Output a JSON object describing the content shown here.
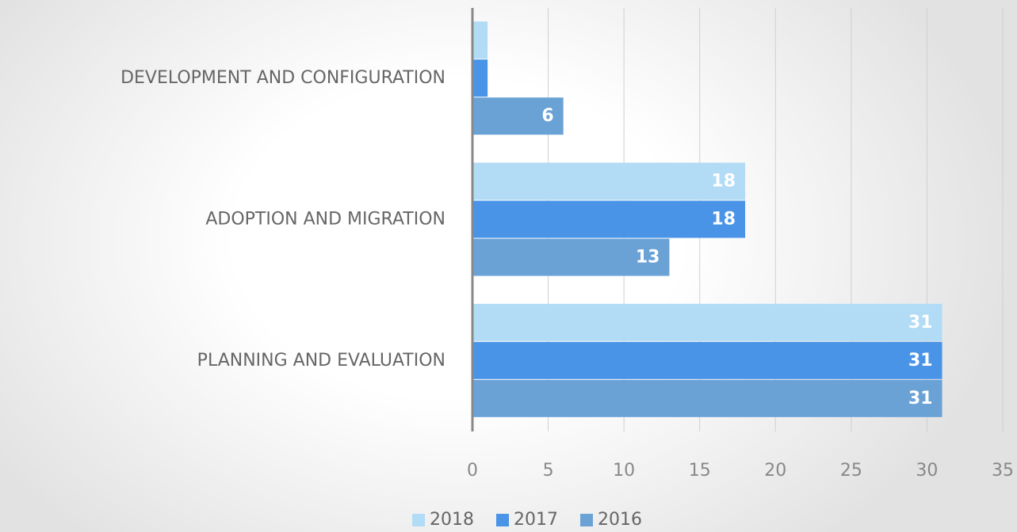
{
  "chart_data": {
    "type": "hbar",
    "categories": [
      "DEVELOPMENT AND CONFIGURATION",
      "ADOPTION AND MIGRATION",
      "PLANNING AND EVALUATION"
    ],
    "series": [
      {
        "name": "2018",
        "color": "#b2dbf5",
        "values": [
          1,
          18,
          31
        ],
        "value_labels": [
          null,
          "18",
          "31"
        ]
      },
      {
        "name": "2017",
        "color": "#4a94e8",
        "values": [
          1,
          18,
          31
        ],
        "value_labels": [
          null,
          "18",
          "31"
        ]
      },
      {
        "name": "2016",
        "color": "#6aa2d6",
        "values": [
          6,
          13,
          31
        ],
        "value_labels": [
          "6",
          "13",
          "31"
        ]
      }
    ],
    "xlim": [
      0,
      35
    ],
    "xticks": [
      0,
      5,
      10,
      15,
      20,
      25,
      30,
      35
    ],
    "grid": true,
    "legend": "bottom"
  }
}
